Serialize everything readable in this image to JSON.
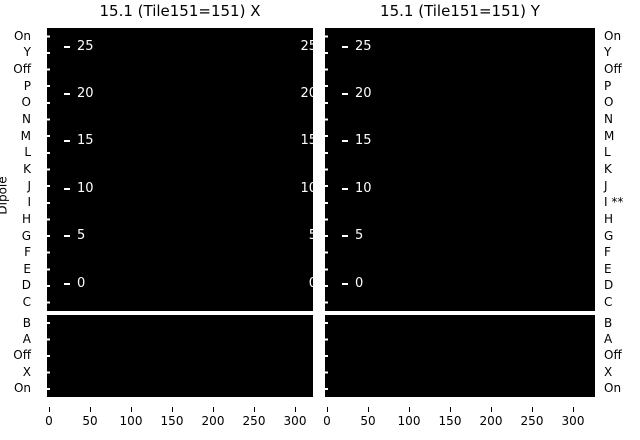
{
  "figure": {
    "bg": "#ffffff",
    "panel_bg": "#000000",
    "inner_text_color": "#ffffff",
    "outer_text_color": "#000000"
  },
  "titles": {
    "left": "15.1 (Tile151=151) X",
    "right": "15.1 (Tile151=151) Y"
  },
  "ylabel": "Dipole",
  "labels": {
    "left_top": [
      "On",
      "Y",
      "Off",
      "P",
      "O",
      "N",
      "M",
      "L",
      "K",
      "J",
      "I",
      "H",
      "G",
      "F",
      "E",
      "D",
      "C"
    ],
    "left_bottom": [
      "B",
      "A",
      "Off",
      "X",
      "On"
    ],
    "right_top": [
      "On",
      "Y",
      "Off",
      "P",
      "O",
      "N",
      "M",
      "L",
      "K",
      "J",
      "I **",
      "H",
      "G",
      "F",
      "E",
      "D",
      "C"
    ],
    "right_bottom": [
      "B",
      "A",
      "Off",
      "X",
      "On"
    ]
  },
  "inner_y": [
    "25",
    "20",
    "15",
    "10",
    "5",
    "0"
  ],
  "x_ticks": [
    "0",
    "50",
    "100",
    "150",
    "200",
    "250",
    "300"
  ],
  "chart_data": {
    "type": "heatmap",
    "panels": [
      {
        "title": "15.1 (Tile151=151) X"
      },
      {
        "title": "15.1 (Tile151=151) Y"
      }
    ],
    "ylabel": "Dipole",
    "y_categories": [
      "On",
      "Y",
      "Off",
      "P",
      "O",
      "N",
      "M",
      "L",
      "K",
      "J",
      "I",
      "H",
      "G",
      "F",
      "E",
      "D",
      "C",
      "B",
      "A",
      "Off",
      "X",
      "On"
    ],
    "y_categories_right": [
      "On",
      "Y",
      "Off",
      "P",
      "O",
      "N",
      "M",
      "L",
      "K",
      "J",
      "I **",
      "H",
      "G",
      "F",
      "E",
      "D",
      "C",
      "B",
      "A",
      "Off",
      "X",
      "On"
    ],
    "inner_axis_tick_values": [
      25,
      20,
      15,
      10,
      5,
      0
    ],
    "x_tick_values": [
      0,
      50,
      100,
      150,
      200,
      250,
      300
    ],
    "x_range": [
      0,
      330
    ],
    "values": "all cells uniform black (#000000) in both panels",
    "separator_between_rows": [
      "C",
      "B"
    ],
    "annotation": "row I flagged with ** on right axis of Y panel",
    "legend": "none",
    "grid": false
  }
}
